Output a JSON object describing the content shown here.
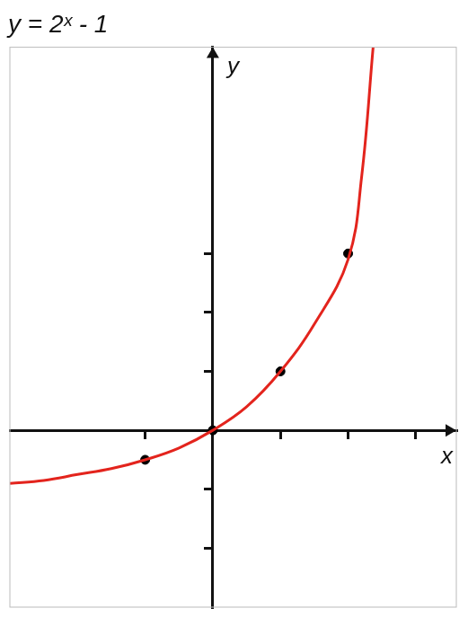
{
  "chart_data": {
    "type": "line",
    "title": "y = 2ˣ - 1",
    "x_label": "x",
    "y_label": "y",
    "xlim": [
      -3,
      3.6
    ],
    "ylim": [
      -3,
      6.5
    ],
    "xticks": [
      -1,
      1,
      2,
      3
    ],
    "yticks": [
      -2,
      -1,
      1,
      2,
      3
    ],
    "grid": false,
    "tick_labels": false,
    "series": [
      {
        "color": "#e3241d",
        "marker": "none",
        "line_style": "solid",
        "x": [
          -3,
          -2.5,
          -2,
          -1.5,
          -1,
          -0.5,
          0,
          0.5,
          1,
          1.5,
          2,
          2.2,
          2.37
        ],
        "values": [
          -0.9,
          -0.85,
          -0.75,
          -0.65,
          -0.5,
          -0.3,
          0,
          0.4,
          1,
          1.8,
          2.9,
          4.3,
          6.5
        ]
      },
      {
        "color": "#000000",
        "type": "scatter",
        "marker": "circle",
        "x": [
          -1,
          0,
          1,
          2
        ],
        "values": [
          -0.5,
          0,
          1,
          3
        ]
      }
    ]
  }
}
